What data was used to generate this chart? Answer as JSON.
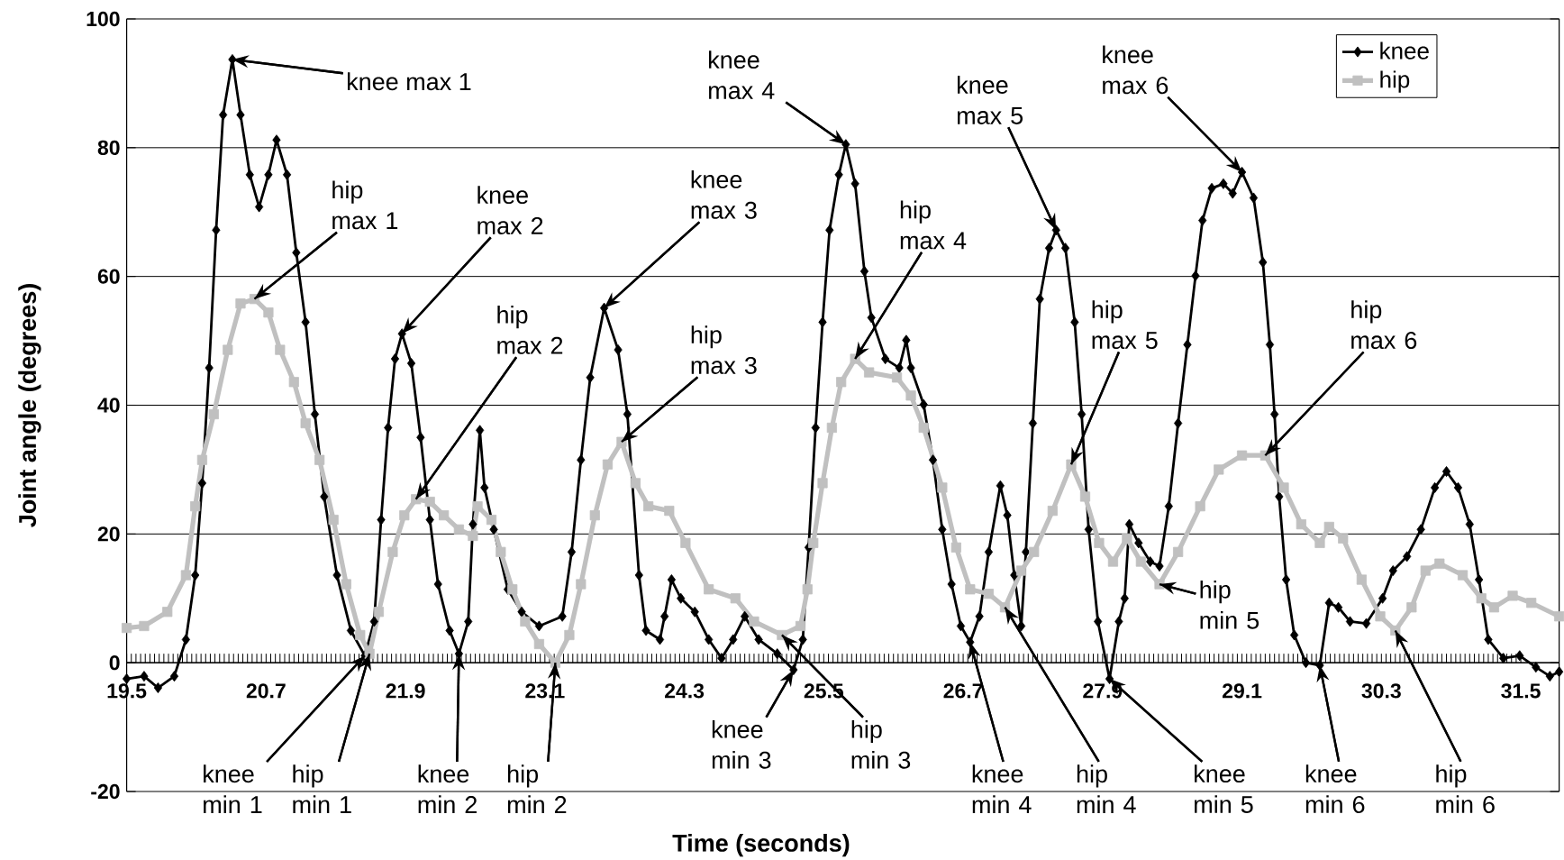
{
  "chart_data": {
    "type": "line",
    "xlabel": "Time (seconds)",
    "ylabel": "Joint angle (degrees)",
    "xlim": [
      19.5,
      31.83
    ],
    "ylim": [
      -20,
      100
    ],
    "xticks": [
      19.5,
      20.7,
      21.9,
      23.1,
      24.3,
      25.5,
      26.7,
      27.9,
      29.1,
      30.3,
      31.5
    ],
    "yticks": [
      -20,
      0,
      20,
      40,
      60,
      80,
      100
    ],
    "grid": "y",
    "legend": "top right",
    "line_style": "solid",
    "series": [
      {
        "name": "knee",
        "color": "#000000",
        "marker": "diamond",
        "x": [
          19.5,
          19.65,
          19.77,
          19.91,
          20.01,
          20.09,
          20.15,
          20.21,
          20.27,
          20.33,
          20.41,
          20.48,
          20.56,
          20.64,
          20.72,
          20.79,
          20.88,
          20.96,
          21.04,
          21.12,
          21.2,
          21.31,
          21.43,
          21.55,
          21.63,
          21.69,
          21.75,
          21.81,
          21.87,
          21.95,
          22.03,
          22.11,
          22.18,
          22.28,
          22.36,
          22.44,
          22.48,
          22.54,
          22.58,
          22.66,
          22.78,
          22.9,
          23.05,
          23.25,
          23.33,
          23.41,
          23.49,
          23.61,
          23.73,
          23.81,
          23.91,
          23.97,
          24.09,
          24.13,
          24.19,
          24.27,
          24.39,
          24.51,
          24.62,
          24.72,
          24.82,
          24.94,
          25.1,
          25.24,
          25.32,
          25.37,
          25.43,
          25.49,
          25.55,
          25.63,
          25.69,
          25.77,
          25.85,
          25.91,
          26.03,
          26.15,
          26.21,
          26.25,
          26.36,
          26.44,
          26.52,
          26.6,
          26.68,
          26.76,
          26.84,
          26.92,
          27.02,
          27.08,
          27.14,
          27.2,
          27.24,
          27.3,
          27.36,
          27.44,
          27.5,
          27.58,
          27.66,
          27.72,
          27.78,
          27.86,
          27.96,
          28.04,
          28.09,
          28.13,
          28.21,
          28.31,
          28.39,
          28.47,
          28.55,
          28.63,
          28.7,
          28.76,
          28.84,
          28.94,
          29.02,
          29.1,
          29.2,
          29.28,
          29.34,
          29.38,
          29.42,
          29.48,
          29.55,
          29.65,
          29.77,
          29.85,
          29.93,
          30.03,
          30.17,
          30.31,
          30.4,
          30.52,
          30.64,
          30.76,
          30.86,
          30.96,
          31.06,
          31.14,
          31.22,
          31.35,
          31.49,
          31.63,
          31.75,
          31.83
        ],
        "values": [
          -2.5,
          -2.1,
          -3.9,
          -2.1,
          3.6,
          13.6,
          27.9,
          45.8,
          67.2,
          85.1,
          93.7,
          85.1,
          75.8,
          70.8,
          75.8,
          81.2,
          75.8,
          63.7,
          52.9,
          38.6,
          25.8,
          13.6,
          5.0,
          1.1,
          6.4,
          22.2,
          36.5,
          47.2,
          51.1,
          46.5,
          35.0,
          22.2,
          12.2,
          5.0,
          1.4,
          6.4,
          21.5,
          36.1,
          27.2,
          20.7,
          11.4,
          7.9,
          5.7,
          7.2,
          17.2,
          31.5,
          44.3,
          55.1,
          48.6,
          38.6,
          13.6,
          5.0,
          3.6,
          7.2,
          12.9,
          10.0,
          7.9,
          3.6,
          0.7,
          3.6,
          7.2,
          3.6,
          1.4,
          -1.1,
          3.6,
          17.9,
          36.5,
          52.9,
          67.2,
          75.8,
          80.5,
          74.4,
          60.8,
          53.6,
          47.2,
          45.8,
          50.1,
          45.8,
          40.1,
          31.5,
          20.7,
          12.2,
          5.7,
          3.2,
          7.2,
          17.2,
          27.5,
          22.9,
          13.6,
          5.7,
          17.2,
          37.2,
          56.5,
          64.4,
          67.2,
          64.4,
          52.9,
          38.6,
          20.7,
          6.4,
          -2.5,
          6.4,
          10.0,
          21.5,
          18.6,
          15.7,
          15.0,
          24.3,
          37.2,
          49.4,
          60.1,
          68.7,
          73.7,
          74.4,
          72.9,
          76.2,
          72.2,
          62.2,
          49.4,
          38.6,
          25.8,
          12.9,
          4.3,
          0.0,
          -0.4,
          9.3,
          8.6,
          6.4,
          6.1,
          10.0,
          14.3,
          16.5,
          20.7,
          27.2,
          29.7,
          27.2,
          21.5,
          12.9,
          3.6,
          0.7,
          1.1,
          -0.7,
          -2.1,
          -1.4
        ]
      },
      {
        "name": "hip",
        "color": "#c0c0c0",
        "marker": "square",
        "x": [
          19.5,
          19.65,
          19.85,
          20.01,
          20.09,
          20.15,
          20.25,
          20.37,
          20.48,
          20.6,
          20.72,
          20.82,
          20.94,
          21.04,
          21.16,
          21.28,
          21.39,
          21.51,
          21.59,
          21.67,
          21.79,
          21.89,
          21.99,
          22.11,
          22.23,
          22.36,
          22.48,
          22.52,
          22.64,
          22.72,
          22.82,
          22.93,
          23.05,
          23.19,
          23.31,
          23.41,
          23.53,
          23.64,
          23.76,
          23.88,
          23.99,
          24.17,
          24.31,
          24.51,
          24.74,
          24.9,
          25.14,
          25.3,
          25.36,
          25.41,
          25.49,
          25.57,
          25.65,
          25.77,
          25.89,
          26.13,
          26.25,
          26.36,
          26.52,
          26.64,
          26.76,
          26.92,
          27.06,
          27.2,
          27.31,
          27.47,
          27.63,
          27.75,
          27.87,
          27.99,
          28.11,
          28.23,
          28.39,
          28.55,
          28.74,
          28.9,
          29.1,
          29.3,
          29.46,
          29.61,
          29.77,
          29.85,
          29.97,
          30.13,
          30.29,
          30.42,
          30.56,
          30.68,
          30.8,
          31.0,
          31.16,
          31.27,
          31.43,
          31.59,
          31.83
        ],
        "values": [
          5.4,
          5.7,
          7.9,
          13.6,
          24.3,
          31.5,
          38.6,
          48.6,
          55.8,
          56.5,
          54.4,
          48.6,
          43.6,
          37.2,
          31.5,
          22.2,
          12.2,
          4.3,
          1.4,
          7.9,
          17.2,
          22.9,
          25.4,
          25.0,
          22.9,
          20.7,
          19.7,
          24.3,
          22.2,
          17.2,
          11.4,
          6.4,
          2.9,
          0.0,
          4.3,
          12.2,
          22.9,
          30.8,
          34.3,
          27.9,
          24.3,
          23.6,
          18.6,
          11.4,
          10.0,
          6.4,
          4.3,
          5.7,
          11.4,
          18.6,
          27.9,
          36.5,
          43.6,
          47.2,
          45.1,
          44.3,
          41.5,
          36.5,
          27.2,
          17.9,
          11.4,
          10.7,
          8.6,
          14.3,
          17.2,
          23.6,
          30.8,
          25.8,
          18.6,
          15.7,
          19.3,
          15.7,
          12.2,
          17.2,
          24.3,
          30.0,
          32.2,
          32.2,
          27.2,
          21.5,
          18.6,
          21.1,
          19.3,
          12.9,
          7.2,
          5.0,
          8.6,
          14.3,
          15.4,
          13.6,
          10.0,
          8.6,
          10.4,
          9.3,
          7.2
        ]
      }
    ],
    "annotations": [
      {
        "text": "knee max 1",
        "x": 20.41,
        "y": 93.7
      },
      {
        "text": "hip max 1",
        "x": 20.6,
        "y": 56.5
      },
      {
        "text": "knee max 2",
        "x": 21.87,
        "y": 51.1
      },
      {
        "text": "hip max 2",
        "x": 21.99,
        "y": 25.4
      },
      {
        "text": "knee max 3",
        "x": 23.61,
        "y": 55.1
      },
      {
        "text": "hip max 3",
        "x": 23.76,
        "y": 34.3
      },
      {
        "text": "knee max 4",
        "x": 25.69,
        "y": 80.5
      },
      {
        "text": "hip max 4",
        "x": 25.77,
        "y": 47.2
      },
      {
        "text": "knee max 5",
        "x": 27.5,
        "y": 67.2
      },
      {
        "text": "knee max 6",
        "x": 29.1,
        "y": 76.2
      },
      {
        "text": "hip max 5",
        "x": 27.63,
        "y": 30.8
      },
      {
        "text": "hip max 6",
        "x": 29.3,
        "y": 32.2
      },
      {
        "text": "hip min 5",
        "x": 28.39,
        "y": 12.2
      },
      {
        "text": "knee min 1",
        "x": 21.55,
        "y": 1.1
      },
      {
        "text": "hip min 1",
        "x": 21.59,
        "y": 1.4
      },
      {
        "text": "knee min 2",
        "x": 22.36,
        "y": 1.4
      },
      {
        "text": "hip min 2",
        "x": 23.19,
        "y": 0.0
      },
      {
        "text": "knee min 3",
        "x": 25.24,
        "y": -1.1
      },
      {
        "text": "hip min 3",
        "x": 25.14,
        "y": 4.3
      },
      {
        "text": "knee min 4",
        "x": 26.76,
        "y": 3.2
      },
      {
        "text": "hip min 4",
        "x": 27.06,
        "y": 8.6
      },
      {
        "text": "knee min 5",
        "x": 27.96,
        "y": -2.5
      },
      {
        "text": "knee min 6",
        "x": 29.77,
        "y": -0.4
      },
      {
        "text": "hip min 6",
        "x": 30.42,
        "y": 5.0
      }
    ]
  }
}
